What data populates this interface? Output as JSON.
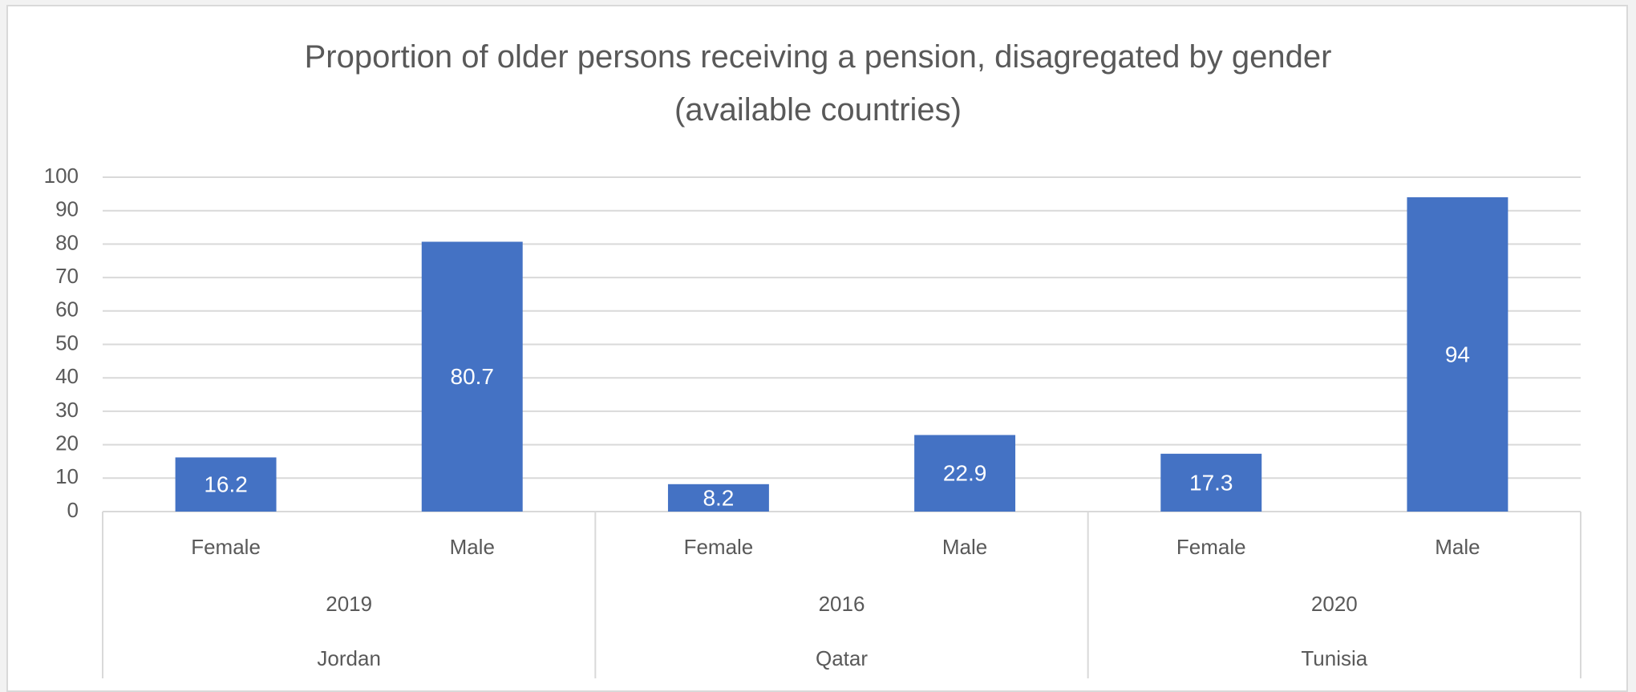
{
  "chart_data": {
    "type": "bar",
    "title": "Proportion of older persons receiving a pension, disagregated by gender (available countries)",
    "categories": [
      "Female",
      "Male",
      "Female",
      "Male",
      "Female",
      "Male"
    ],
    "groups": [
      {
        "year": "2019",
        "country": "Jordan"
      },
      {
        "year": "2016",
        "country": "Qatar"
      },
      {
        "year": "2020",
        "country": "Tunisia"
      }
    ],
    "values": [
      16.2,
      80.7,
      8.2,
      22.9,
      17.3,
      94
    ],
    "color": "#4472c4",
    "ylim": [
      0,
      100
    ],
    "yticks": [
      0,
      10,
      20,
      30,
      40,
      50,
      60,
      70,
      80,
      90,
      100
    ],
    "grid": true
  }
}
